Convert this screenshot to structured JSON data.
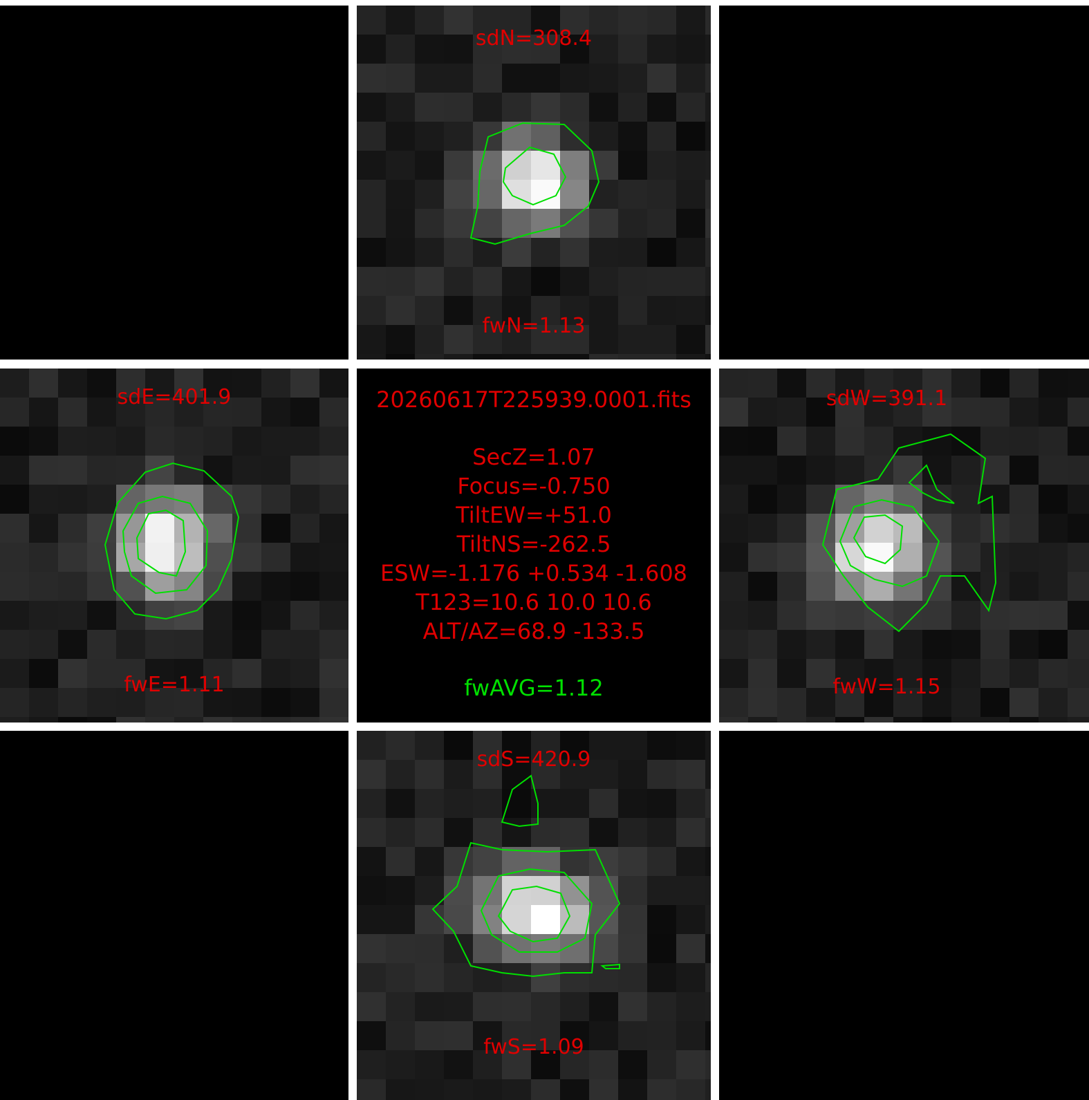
{
  "file_name": "20260617T225939.0001.fits",
  "sec_z": "SecZ=1.07",
  "focus": "Focus=-0.750",
  "tilt_ew": "TiltEW=+51.0",
  "tilt_ns": "TiltNS=-262.5",
  "esw": "ESW=-1.176 +0.534 -1.608",
  "t123": "T123=10.6 10.0 10.6",
  "alt_az": "ALT/AZ=68.9 -133.5",
  "fw_avg": "fwAVG=1.12",
  "stars": {
    "north": {
      "sd": "sdN=308.4",
      "fw": "fwN=1.13"
    },
    "east": {
      "sd": "sdE=401.9",
      "fw": "fwE=1.11"
    },
    "west": {
      "sd": "sdW=391.1",
      "fw": "fwW=1.15"
    },
    "south": {
      "sd": "sdS=420.9",
      "fw": "fwS=1.09"
    }
  },
  "colors": {
    "label": "#e00000",
    "contour": "#00e000",
    "highlight": "#00e000",
    "background": "#000000",
    "divider": "#ffffff"
  }
}
